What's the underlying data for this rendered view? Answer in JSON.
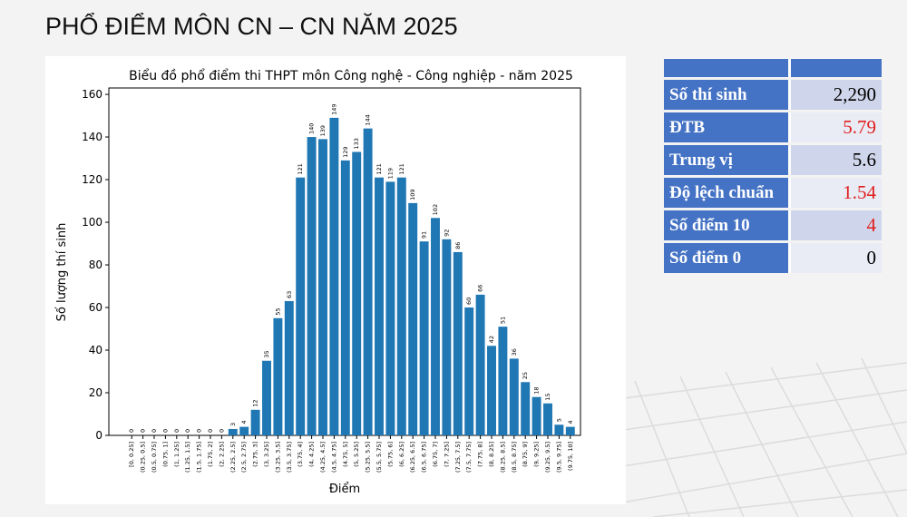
{
  "slide_title": "PHỔ ĐIỂM MÔN CN – CN NĂM 2025",
  "chart_data": {
    "type": "bar",
    "title": "Biểu đồ phổ điểm thi THPT môn Công nghệ - Công nghiệp - năm 2025",
    "xlabel": "Điểm",
    "ylabel": "Số lượng thí sinh",
    "ylim": [
      0,
      163
    ],
    "yticks": [
      0,
      20,
      40,
      60,
      80,
      100,
      120,
      140,
      160
    ],
    "bar_color": "#1f77b4",
    "categories": [
      "[0, 0.25]",
      "(0.25, 0.5]",
      "(0.5, 0.75]",
      "(0.75, 1]",
      "(1, 1.25]",
      "(1.25, 1.5]",
      "(1.5, 1.75]",
      "(1.75, 2]",
      "(2, 2.25]",
      "(2.25, 2.5]",
      "(2.5, 2.75]",
      "(2.75, 3]",
      "(3, 3.25]",
      "(3.25, 3.5]",
      "(3.5, 3.75]",
      "(3.75, 4]",
      "(4, 4.25]",
      "(4.25, 4.5]",
      "(4.5, 4.75]",
      "(4.75, 5]",
      "(5, 5.25]",
      "(5.25, 5.5]",
      "(5.5, 5.75]",
      "(5.75, 6]",
      "(6, 6.25]",
      "(6.25, 6.5]",
      "(6.5, 6.75]",
      "(6.75, 7]",
      "(7, 7.25]",
      "(7.25, 7.5]",
      "(7.5, 7.75]",
      "(7.75, 8]",
      "(8, 8.25]",
      "(8.25, 8.5]",
      "(8.5, 8.75]",
      "(8.75, 9]",
      "(9, 9.25]",
      "(9.25, 9.5]",
      "(9.5, 9.75]",
      "(9.75, 10]"
    ],
    "values": [
      0,
      0,
      0,
      0,
      0,
      0,
      0,
      0,
      0,
      3,
      4,
      12,
      35,
      55,
      63,
      121,
      140,
      139,
      149,
      129,
      133,
      144,
      121,
      119,
      121,
      109,
      91,
      102,
      92,
      86,
      60,
      66,
      42,
      51,
      36,
      25,
      18,
      15,
      5,
      4
    ]
  },
  "stats_table": {
    "header_color": "#4472c4",
    "rows": [
      {
        "label": "Số thí sinh",
        "value": "2,290",
        "highlight": false
      },
      {
        "label": "ĐTB",
        "value": "5.79",
        "highlight": true
      },
      {
        "label": "Trung vị",
        "value": "5.6",
        "highlight": false
      },
      {
        "label": "Độ lệch chuẩn",
        "value": "1.54",
        "highlight": true
      },
      {
        "label": "Số điểm 10",
        "value": "4",
        "highlight": true
      },
      {
        "label": "Số điểm 0",
        "value": "0",
        "highlight": false
      }
    ]
  }
}
